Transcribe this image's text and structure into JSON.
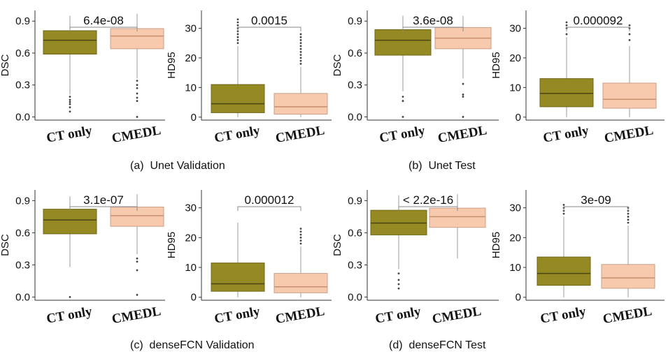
{
  "colors": {
    "ct_only": "#958924",
    "cmedl": "#f7c9ad",
    "median_ct": "#4a4410",
    "median_cmedl": "#c98f6e",
    "axis": "#333333",
    "bracket": "#8a8a8a"
  },
  "captions": [
    {
      "label": "(a)",
      "text": "Unet Validation"
    },
    {
      "label": "(b)",
      "text": "Unet Test"
    },
    {
      "label": "(c)",
      "text": "denseFCN Validation"
    },
    {
      "label": "(d)",
      "text": "denseFCN Test"
    }
  ],
  "chart_data": [
    {
      "type": "box",
      "ylabel": "DSC",
      "categories": [
        "CT only",
        "CMEDL"
      ],
      "ylim": [
        -0.03,
        1.0
      ],
      "yticks": [
        "0.0",
        "0.3",
        "0.6",
        "0.9"
      ],
      "pvalue": "6.4e-08",
      "boxes": [
        {
          "q1": 0.59,
          "median": 0.72,
          "q3": 0.81,
          "whisker_low": 0.21,
          "whisker_high": 0.95,
          "outliers": [
            0.19,
            0.16,
            0.14,
            0.12,
            0.09,
            0.05
          ]
        },
        {
          "q1": 0.64,
          "median": 0.76,
          "q3": 0.83,
          "whisker_low": 0.36,
          "whisker_high": 0.97,
          "outliers": [
            0.34,
            0.3,
            0.27,
            0.22,
            0.18,
            0.15,
            0.0
          ]
        }
      ]
    },
    {
      "type": "box",
      "ylabel": "HD95",
      "categories": [
        "CT only",
        "CMEDL"
      ],
      "ylim": [
        -1,
        36
      ],
      "yticks": [
        "0",
        "10",
        "20",
        "30"
      ],
      "pvalue": "0.0015",
      "boxes": [
        {
          "q1": 1.5,
          "median": 4.5,
          "q3": 11.0,
          "whisker_low": 0.0,
          "whisker_high": 24.0,
          "outliers": [
            25,
            26,
            27,
            28,
            29,
            30,
            31,
            32,
            33
          ]
        },
        {
          "q1": 1.0,
          "median": 3.5,
          "q3": 8.0,
          "whisker_low": 0.0,
          "whisker_high": 17.0,
          "outliers": [
            18,
            19,
            20,
            21,
            22,
            23,
            24,
            25,
            26,
            27,
            28
          ]
        }
      ]
    },
    {
      "type": "box",
      "ylabel": "DSC",
      "categories": [
        "CT only",
        "CMEDL"
      ],
      "ylim": [
        -0.03,
        1.0
      ],
      "yticks": [
        "0.0",
        "0.3",
        "0.6",
        "0.9"
      ],
      "pvalue": "3.6e-08",
      "boxes": [
        {
          "q1": 0.58,
          "median": 0.72,
          "q3": 0.82,
          "whisker_low": 0.24,
          "whisker_high": 0.95,
          "outliers": [
            0.19,
            0.15,
            0.0
          ]
        },
        {
          "q1": 0.64,
          "median": 0.74,
          "q3": 0.84,
          "whisker_low": 0.36,
          "whisker_high": 0.95,
          "outliers": [
            0.31,
            0.21,
            0.19,
            0.0
          ]
        }
      ]
    },
    {
      "type": "box",
      "ylabel": "HD95",
      "categories": [
        "CT only",
        "CMEDL"
      ],
      "ylim": [
        -1,
        36
      ],
      "yticks": [
        "0",
        "10",
        "20",
        "30"
      ],
      "pvalue": "0.000092",
      "boxes": [
        {
          "q1": 3.5,
          "median": 8.0,
          "q3": 13.0,
          "whisker_low": 0.0,
          "whisker_high": 27.0,
          "outliers": [
            28,
            30,
            31,
            32
          ]
        },
        {
          "q1": 3.0,
          "median": 6.0,
          "q3": 11.5,
          "whisker_low": 0.0,
          "whisker_high": 24.0,
          "outliers": [
            26,
            28,
            30,
            31
          ]
        }
      ]
    },
    {
      "type": "box",
      "ylabel": "DSC",
      "categories": [
        "CT only",
        "CMEDL"
      ],
      "ylim": [
        -0.03,
        1.0
      ],
      "yticks": [
        "0.0",
        "0.3",
        "0.6",
        "0.9"
      ],
      "pvalue": "3.1e-07",
      "boxes": [
        {
          "q1": 0.59,
          "median": 0.72,
          "q3": 0.82,
          "whisker_low": 0.28,
          "whisker_high": 0.94,
          "outliers": [
            0.0
          ]
        },
        {
          "q1": 0.66,
          "median": 0.76,
          "q3": 0.84,
          "whisker_low": 0.4,
          "whisker_high": 0.96,
          "outliers": [
            0.36,
            0.33,
            0.25,
            0.02
          ]
        }
      ]
    },
    {
      "type": "box",
      "ylabel": "HD95",
      "categories": [
        "CT only",
        "CMEDL"
      ],
      "ylim": [
        -1,
        36
      ],
      "yticks": [
        "0",
        "10",
        "20",
        "30"
      ],
      "pvalue": "0.000012",
      "boxes": [
        {
          "q1": 2.0,
          "median": 4.5,
          "q3": 11.5,
          "whisker_low": 0.0,
          "whisker_high": 25.0,
          "outliers": []
        },
        {
          "q1": 1.5,
          "median": 3.5,
          "q3": 8.0,
          "whisker_low": 0.0,
          "whisker_high": 17.0,
          "outliers": [
            18,
            19,
            20,
            21,
            22,
            23
          ]
        }
      ]
    },
    {
      "type": "box",
      "ylabel": "DSC",
      "categories": [
        "CT only",
        "CMEDL"
      ],
      "ylim": [
        -0.03,
        1.0
      ],
      "yticks": [
        "0.0",
        "0.3",
        "0.6",
        "0.9"
      ],
      "pvalue": "< 2.2e-16",
      "boxes": [
        {
          "q1": 0.58,
          "median": 0.69,
          "q3": 0.81,
          "whisker_low": 0.26,
          "whisker_high": 0.95,
          "outliers": [
            0.22,
            0.16,
            0.12,
            0.08
          ]
        },
        {
          "q1": 0.65,
          "median": 0.75,
          "q3": 0.83,
          "whisker_low": 0.36,
          "whisker_high": 0.96,
          "outliers": []
        }
      ]
    },
    {
      "type": "box",
      "ylabel": "HD95",
      "categories": [
        "CT only",
        "CMEDL"
      ],
      "ylim": [
        -1,
        36
      ],
      "yticks": [
        "0",
        "10",
        "20",
        "30"
      ],
      "pvalue": "3e-09",
      "boxes": [
        {
          "q1": 4.0,
          "median": 8.0,
          "q3": 13.5,
          "whisker_low": 0.0,
          "whisker_high": 27.0,
          "outliers": [
            28,
            29,
            30,
            31
          ]
        },
        {
          "q1": 3.0,
          "median": 6.5,
          "q3": 11.0,
          "whisker_low": 0.0,
          "whisker_high": 24.0,
          "outliers": [
            25,
            26,
            27,
            28,
            29,
            30
          ]
        }
      ]
    }
  ]
}
